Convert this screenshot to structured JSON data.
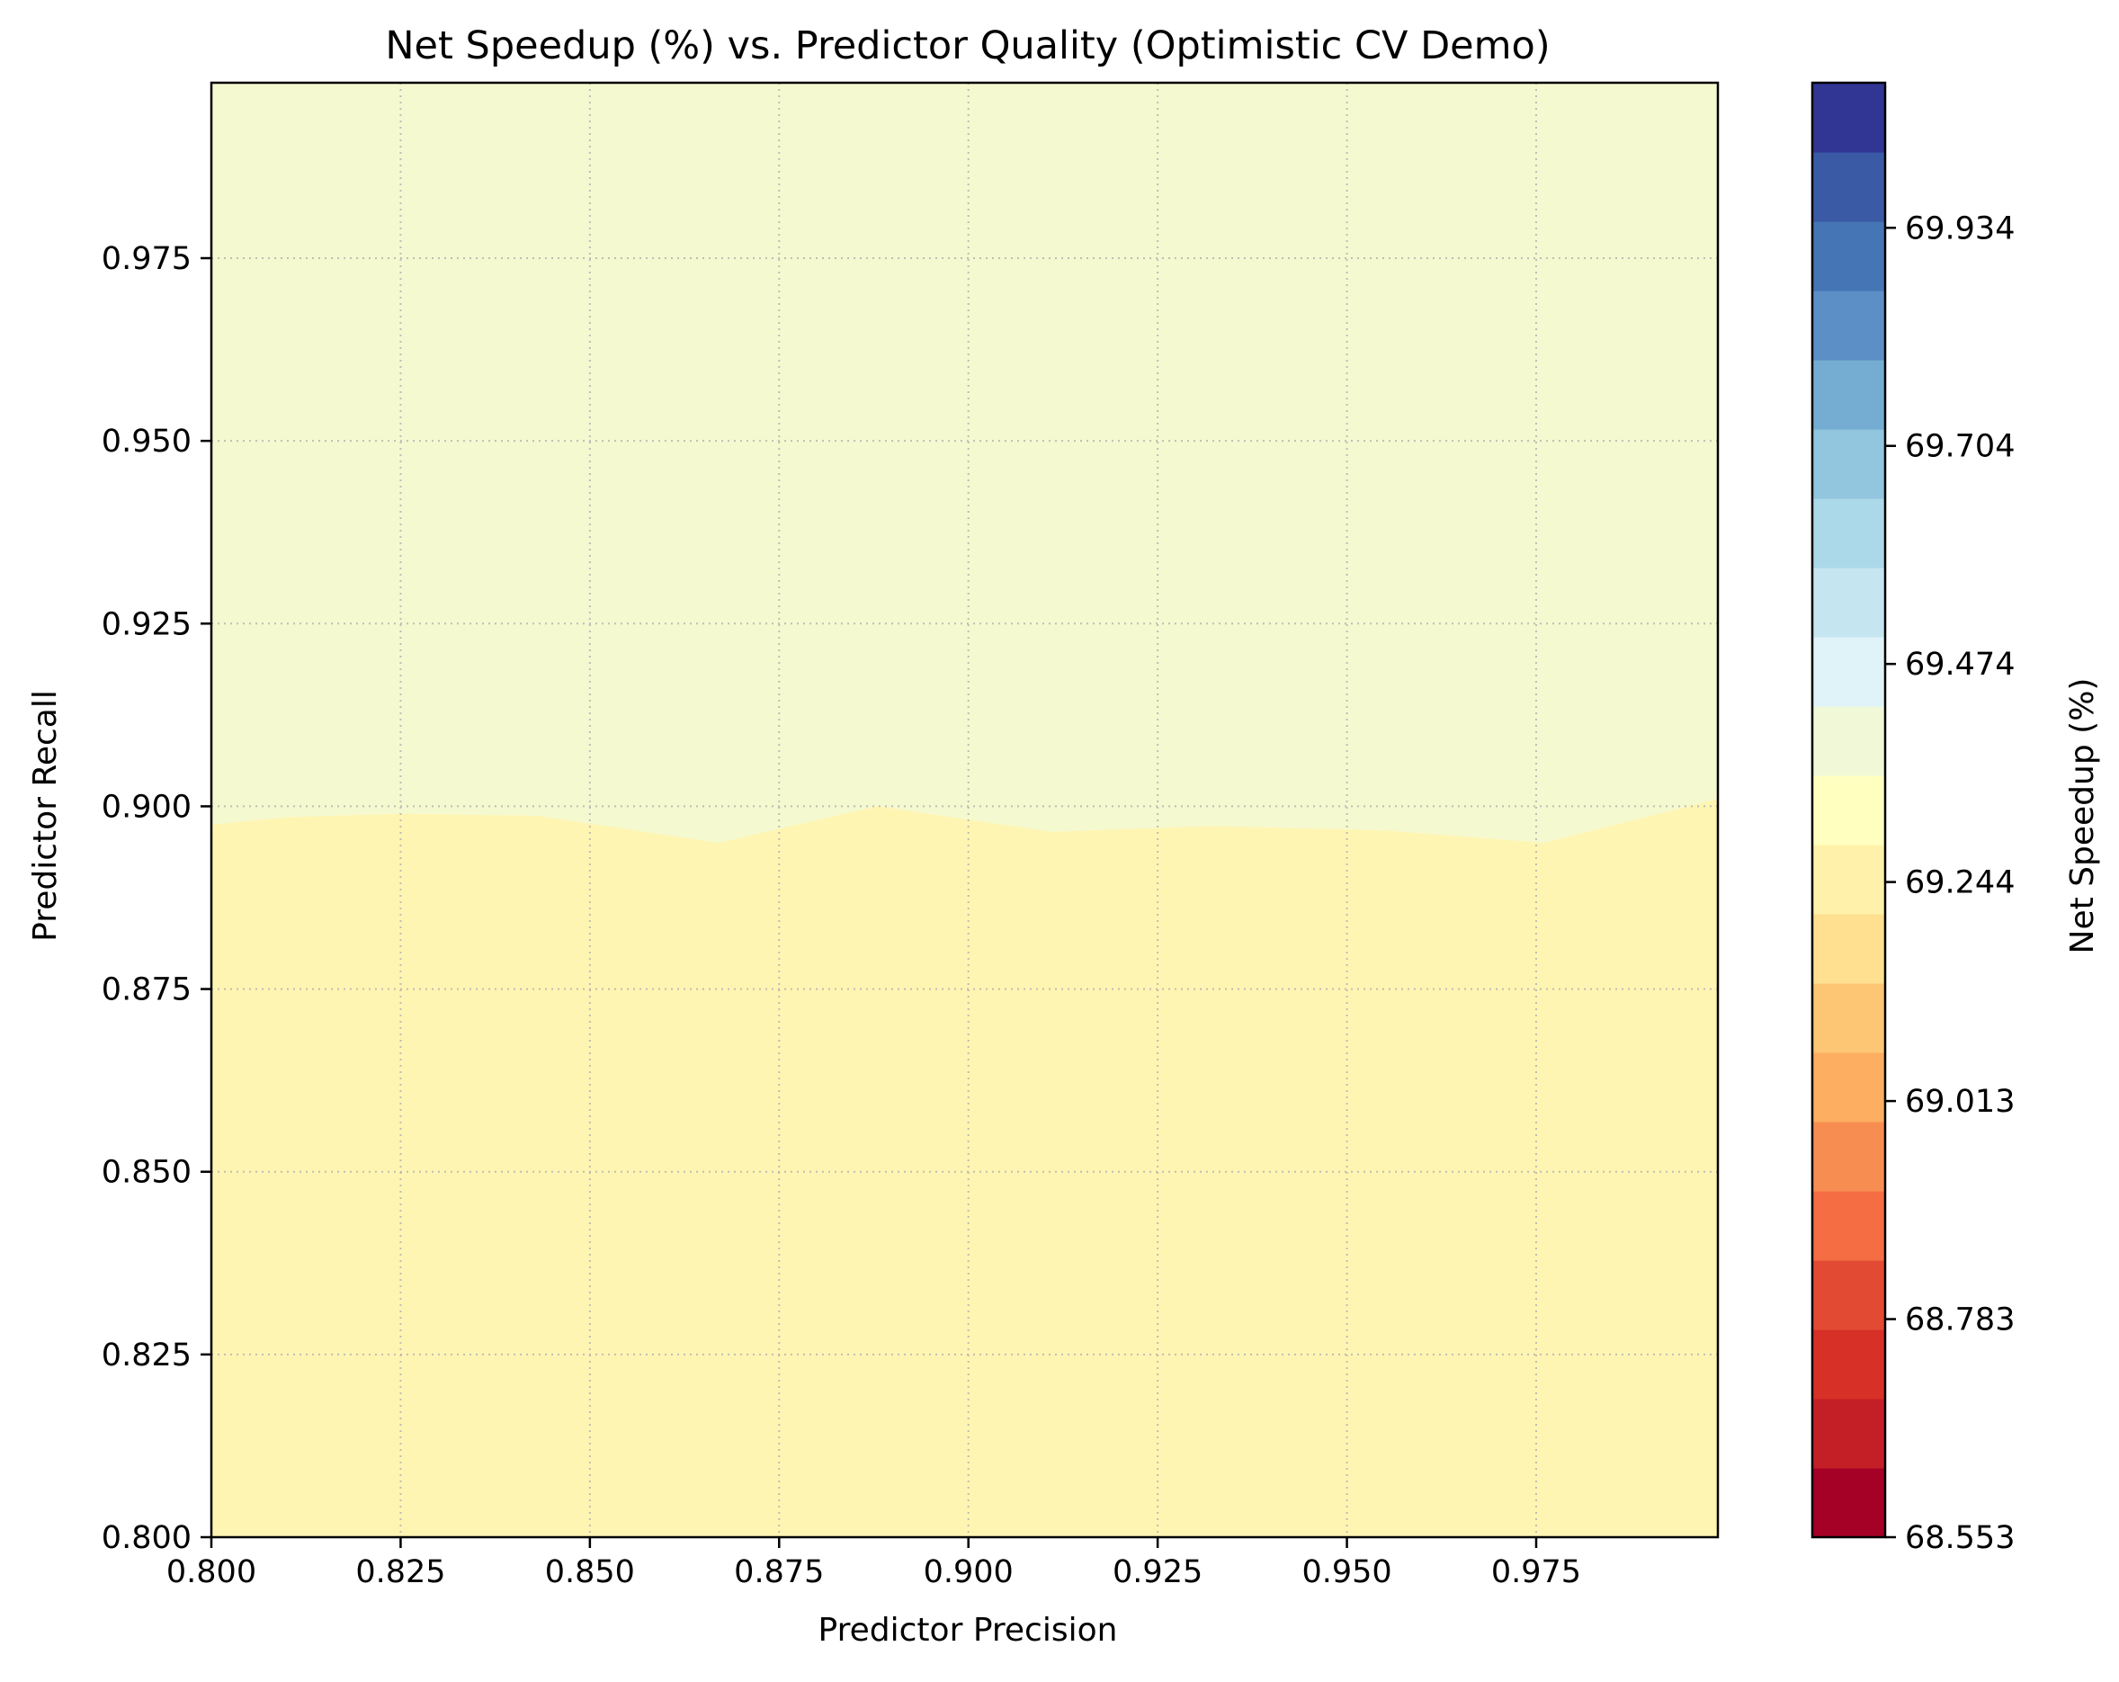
{
  "chart_data": {
    "type": "heatmap",
    "subtype": "filled-contour",
    "title": "Net Speedup (%) vs. Predictor Quality (Optimistic CV Demo)",
    "xlabel": "Predictor Precision",
    "ylabel": "Predictor Recall",
    "xlim": [
      0.8,
      0.999
    ],
    "ylim": [
      0.8,
      0.999
    ],
    "xticks": [
      "0.800",
      "0.825",
      "0.850",
      "0.875",
      "0.900",
      "0.925",
      "0.950",
      "0.975"
    ],
    "yticks": [
      "0.800",
      "0.825",
      "0.850",
      "0.875",
      "0.900",
      "0.925",
      "0.950",
      "0.975"
    ],
    "grid": true,
    "colorbar": {
      "label": "Net Speedup (%)",
      "min": 68.553,
      "max": 70.087,
      "ticks": [
        "68.553",
        "68.783",
        "69.013",
        "69.244",
        "69.474",
        "69.704",
        "69.934"
      ],
      "colormap": "RdYlBu",
      "levels": 20,
      "colors": [
        "#a50026",
        "#c41f27",
        "#d73027",
        "#e34a33",
        "#f46d43",
        "#f88d52",
        "#fdae61",
        "#fdc675",
        "#fee090",
        "#fff1a9",
        "#ffffbf",
        "#f0f8d8",
        "#e0f3f8",
        "#c5e6f0",
        "#abd9e9",
        "#92c5de",
        "#74add1",
        "#5b8fc5",
        "#4575b4",
        "#3a5aa5",
        "#313695"
      ]
    },
    "regions": [
      {
        "name": "lower",
        "range": [
          69.244,
          69.321
        ],
        "color": "#fff5b3"
      },
      {
        "name": "upper",
        "range": [
          69.321,
          69.397
        ],
        "color": "#f5f9cf"
      }
    ],
    "boundary": {
      "x": [
        0.8,
        0.81,
        0.825,
        0.843,
        0.867,
        0.888,
        0.911,
        0.932,
        0.955,
        0.976,
        0.999
      ],
      "y": [
        0.8975,
        0.8985,
        0.899,
        0.8987,
        0.895,
        0.9,
        0.8965,
        0.8973,
        0.8967,
        0.895,
        0.901
      ]
    }
  }
}
